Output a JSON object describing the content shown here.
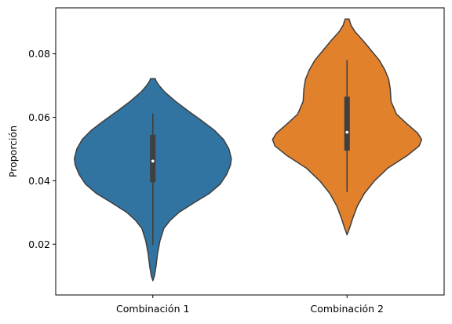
{
  "chart_data": {
    "type": "violin",
    "title": "",
    "xlabel": "",
    "ylabel": "Proporción",
    "ylim": [
      0.004,
      0.0945
    ],
    "yticks": [
      0.02,
      0.04,
      0.06,
      0.08
    ],
    "ytick_labels": [
      "0.02",
      "0.04",
      "0.06",
      "0.08"
    ],
    "grid": false,
    "legend": "none",
    "categories": [
      "Combinación 1",
      "Combinación 2"
    ],
    "violins": [
      {
        "category": "Combinación 1",
        "color": "#3174a1",
        "min": 0.0197,
        "q1": 0.0395,
        "median": 0.0462,
        "q3": 0.0545,
        "max": 0.0612,
        "kde_min": 0.0085,
        "kde_max": 0.0722,
        "profile": [
          [
            0.0085,
            0.0
          ],
          [
            0.01,
            0.02
          ],
          [
            0.013,
            0.04
          ],
          [
            0.017,
            0.06
          ],
          [
            0.021,
            0.09
          ],
          [
            0.025,
            0.14
          ],
          [
            0.0275,
            0.22
          ],
          [
            0.03,
            0.33
          ],
          [
            0.033,
            0.52
          ],
          [
            0.036,
            0.72
          ],
          [
            0.039,
            0.86
          ],
          [
            0.042,
            0.94
          ],
          [
            0.045,
            0.99
          ],
          [
            0.047,
            1.0
          ],
          [
            0.05,
            0.97
          ],
          [
            0.053,
            0.9
          ],
          [
            0.056,
            0.78
          ],
          [
            0.059,
            0.62
          ],
          [
            0.062,
            0.45
          ],
          [
            0.065,
            0.29
          ],
          [
            0.068,
            0.15
          ],
          [
            0.07,
            0.08
          ],
          [
            0.0715,
            0.04
          ],
          [
            0.0722,
            0.03
          ]
        ]
      },
      {
        "category": "Combinación 2",
        "color": "#e1812c",
        "min": 0.0365,
        "q1": 0.0495,
        "median": 0.0553,
        "q3": 0.0665,
        "max": 0.078,
        "kde_min": 0.023,
        "kde_max": 0.091,
        "profile": [
          [
            0.023,
            0.0
          ],
          [
            0.025,
            0.03
          ],
          [
            0.028,
            0.07
          ],
          [
            0.032,
            0.13
          ],
          [
            0.036,
            0.22
          ],
          [
            0.04,
            0.35
          ],
          [
            0.044,
            0.52
          ],
          [
            0.048,
            0.77
          ],
          [
            0.051,
            0.92
          ],
          [
            0.053,
            0.95
          ],
          [
            0.055,
            0.9
          ],
          [
            0.058,
            0.76
          ],
          [
            0.061,
            0.63
          ],
          [
            0.065,
            0.56
          ],
          [
            0.069,
            0.55
          ],
          [
            0.072,
            0.53
          ],
          [
            0.075,
            0.48
          ],
          [
            0.078,
            0.41
          ],
          [
            0.081,
            0.31
          ],
          [
            0.084,
            0.21
          ],
          [
            0.087,
            0.1
          ],
          [
            0.089,
            0.05
          ],
          [
            0.091,
            0.025
          ]
        ]
      }
    ]
  }
}
